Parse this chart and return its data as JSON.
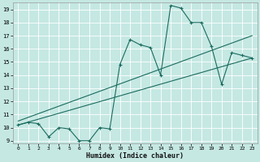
{
  "xlabel": "Humidex (Indice chaleur)",
  "bg_color": "#c5e8e3",
  "line_color": "#1a6b5e",
  "xlim": [
    -0.5,
    23.5
  ],
  "ylim": [
    8.8,
    19.5
  ],
  "xticks": [
    0,
    1,
    2,
    3,
    4,
    5,
    6,
    7,
    8,
    9,
    10,
    11,
    12,
    13,
    14,
    15,
    16,
    17,
    18,
    19,
    20,
    21,
    22,
    23
  ],
  "yticks": [
    9,
    10,
    11,
    12,
    13,
    14,
    15,
    16,
    17,
    18,
    19
  ],
  "zigzag_x": [
    0,
    1,
    2,
    3,
    4,
    5,
    6,
    7,
    8,
    9,
    10,
    11,
    12,
    13,
    14,
    15,
    16,
    17,
    18,
    19,
    20,
    21,
    22,
    23
  ],
  "zigzag_y": [
    10.2,
    10.4,
    10.3,
    9.3,
    10.0,
    9.9,
    9.0,
    9.0,
    10.0,
    9.9,
    14.8,
    16.7,
    16.3,
    16.1,
    14.0,
    19.3,
    19.1,
    18.0,
    18.0,
    16.2,
    13.3,
    15.7,
    15.5,
    15.3
  ],
  "trend1_x": [
    0,
    23
  ],
  "trend1_y": [
    10.5,
    17.0
  ],
  "trend2_x": [
    0,
    23
  ],
  "trend2_y": [
    10.2,
    15.3
  ]
}
